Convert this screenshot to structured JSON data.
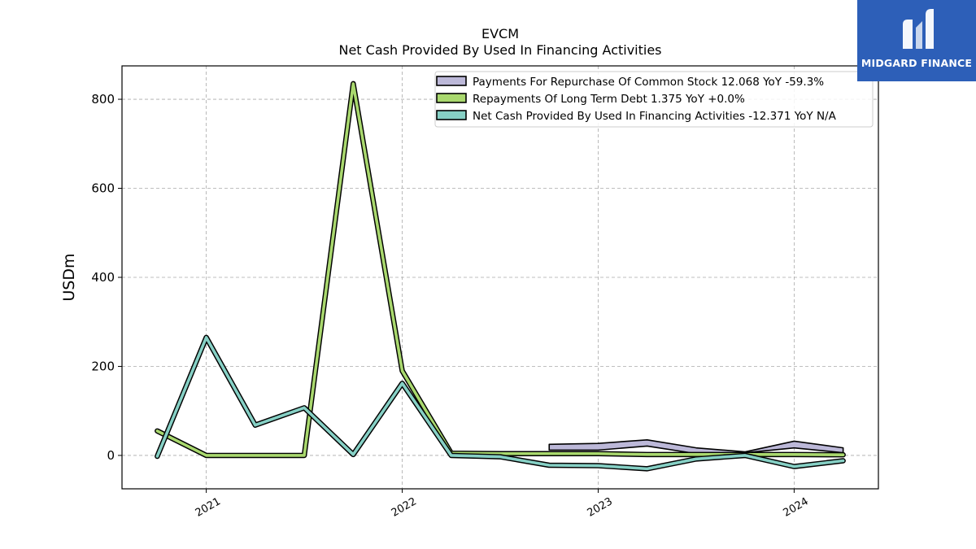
{
  "chart_data": {
    "type": "line",
    "title": "EVCM",
    "subtitle": "Net Cash Provided By Used In Financing Activities",
    "ylabel": "USDm",
    "xlabel": "",
    "ylim": [
      -75,
      875
    ],
    "xlim": [
      2020.57,
      2024.43
    ],
    "yticks": [
      0,
      200,
      400,
      600,
      800
    ],
    "xticks": [
      2021,
      2022,
      2023,
      2024
    ],
    "xtick_labels": [
      "2021",
      "2022",
      "2023",
      "2024"
    ],
    "grid": true,
    "legend_position": "top-right",
    "series": [
      {
        "name": "Payments For Repurchase Of Common Stock",
        "legend_label": "Payments For Repurchase Of Common Stock  12.068 YoY -59.3%",
        "color": "#bcb8d8",
        "style": "band",
        "x": [
          2022.75,
          2023.0,
          2023.25,
          2023.5,
          2023.75,
          2024.0,
          2024.25
        ],
        "upper": [
          25,
          27,
          35,
          17,
          8,
          32,
          17
        ],
        "lower": [
          12,
          12,
          21,
          4,
          6,
          17,
          6
        ]
      },
      {
        "name": "Repayments Of Long Term Debt",
        "legend_label": "Repayments Of Long Term Debt  1.375 YoY +0.0%",
        "color": "#a9d86e",
        "style": "line",
        "x": [
          2020.75,
          2021.0,
          2021.25,
          2021.5,
          2021.75,
          2022.0,
          2022.25,
          2022.5,
          2022.75,
          2023.0,
          2023.25,
          2023.5,
          2023.75,
          2024.0,
          2024.25
        ],
        "values": [
          55,
          0,
          0,
          0,
          835,
          190,
          5,
          4,
          4,
          4,
          2,
          2,
          2,
          2,
          1.4
        ]
      },
      {
        "name": "Net Cash Provided By Used In Financing Activities",
        "legend_label": "Net Cash Provided By Used In Financing Activities  -12.371 YoY N/A",
        "color": "#86d0c5",
        "style": "line",
        "x": [
          2020.75,
          2021.0,
          2021.25,
          2021.5,
          2021.75,
          2022.0,
          2022.25,
          2022.5,
          2022.75,
          2023.0,
          2023.25,
          2023.5,
          2023.75,
          2024.0,
          2024.25
        ],
        "values": [
          -2,
          265,
          68,
          107,
          2,
          162,
          0,
          -3,
          -22,
          -23,
          -30,
          -8,
          0,
          -25,
          -12
        ]
      }
    ]
  },
  "logo": {
    "brand": "MIDGARD FINANCE"
  }
}
